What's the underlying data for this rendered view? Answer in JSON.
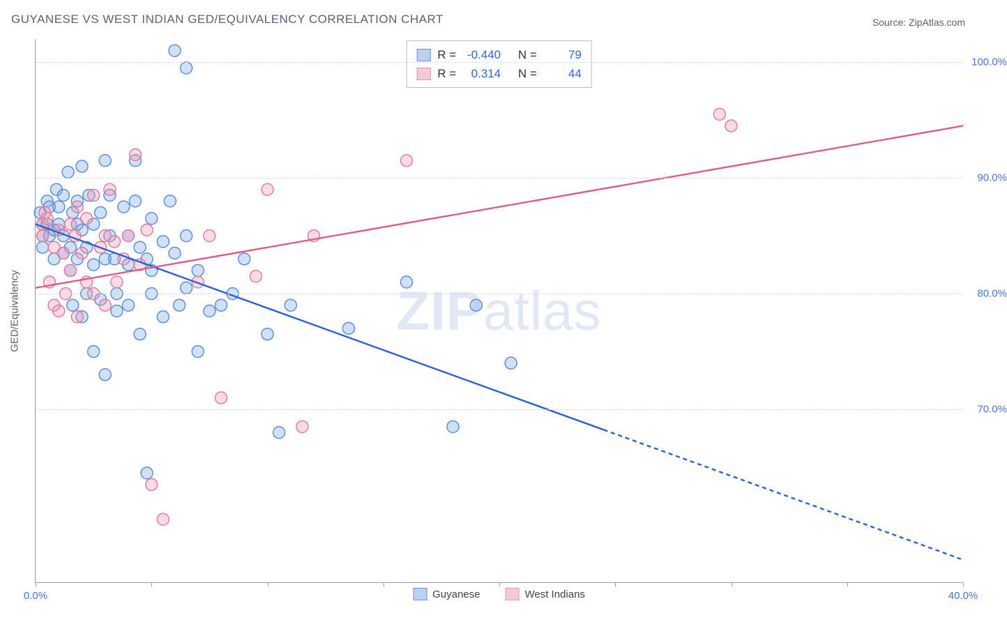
{
  "title": "GUYANESE VS WEST INDIAN GED/EQUIVALENCY CORRELATION CHART",
  "source": "Source: ZipAtlas.com",
  "watermark": {
    "zip": "ZIP",
    "atlas": "atlas"
  },
  "y_axis_label": "GED/Equivalency",
  "chart": {
    "type": "scatter-with-regression",
    "background_color": "#ffffff",
    "grid_color": "#d8d8d8",
    "axis_color": "#999999",
    "tick_label_color": "#4a74d6",
    "x": {
      "min": 0,
      "max": 40,
      "ticks": [
        0,
        5,
        10,
        15,
        20,
        25,
        30,
        35,
        40
      ],
      "labels": {
        "0": "0.0%",
        "40": "40.0%"
      }
    },
    "y": {
      "min": 55,
      "max": 102,
      "ticks": [
        70,
        80,
        90,
        100
      ],
      "labels": {
        "70": "70.0%",
        "80": "80.0%",
        "90": "90.0%",
        "100": "100.0%"
      }
    },
    "marker_radius": 8.5,
    "marker_stroke_width": 1.5,
    "line_width": 2.4,
    "series": [
      {
        "id": "guyanese",
        "label": "Guyanese",
        "fill": "rgba(120,165,230,0.35)",
        "stroke": "#5e8fd8",
        "line_color": "#2d5fd0",
        "swatch_fill": "#bcd1f1",
        "swatch_stroke": "#6b95da",
        "R": "-0.440",
        "N": "79",
        "regression": {
          "x1": 0,
          "y1": 86,
          "x2": 40,
          "y2": 57,
          "solid_until_x": 24.5,
          "dash": "6 5"
        },
        "points": [
          [
            0.2,
            87
          ],
          [
            0.3,
            86
          ],
          [
            0.3,
            85
          ],
          [
            0.3,
            84
          ],
          [
            0.5,
            88
          ],
          [
            0.5,
            86
          ],
          [
            0.6,
            85
          ],
          [
            0.6,
            87.5
          ],
          [
            0.8,
            83
          ],
          [
            0.8,
            85.5
          ],
          [
            0.9,
            89
          ],
          [
            1.0,
            87.5
          ],
          [
            1.0,
            86
          ],
          [
            1.2,
            88.5
          ],
          [
            1.2,
            85
          ],
          [
            1.2,
            83.5
          ],
          [
            1.4,
            90.5
          ],
          [
            1.5,
            82
          ],
          [
            1.5,
            84
          ],
          [
            1.6,
            87
          ],
          [
            1.6,
            79
          ],
          [
            1.8,
            88
          ],
          [
            1.8,
            86
          ],
          [
            1.8,
            83
          ],
          [
            2.0,
            91
          ],
          [
            2.0,
            85.5
          ],
          [
            2.0,
            78
          ],
          [
            2.2,
            84
          ],
          [
            2.2,
            80
          ],
          [
            2.3,
            88.5
          ],
          [
            2.5,
            82.5
          ],
          [
            2.5,
            86
          ],
          [
            2.5,
            75
          ],
          [
            2.8,
            87
          ],
          [
            2.8,
            79.5
          ],
          [
            3.0,
            83
          ],
          [
            3.0,
            91.5
          ],
          [
            3.0,
            73
          ],
          [
            3.2,
            88.5
          ],
          [
            3.2,
            85
          ],
          [
            3.4,
            83
          ],
          [
            3.5,
            80
          ],
          [
            3.5,
            78.5
          ],
          [
            3.8,
            87.5
          ],
          [
            4.0,
            85
          ],
          [
            4.0,
            82.5
          ],
          [
            4.0,
            79
          ],
          [
            4.3,
            91.5
          ],
          [
            4.3,
            88
          ],
          [
            4.5,
            84
          ],
          [
            4.5,
            76.5
          ],
          [
            4.8,
            83
          ],
          [
            5.0,
            86.5
          ],
          [
            5.0,
            82
          ],
          [
            5.0,
            80
          ],
          [
            5.5,
            84.5
          ],
          [
            5.5,
            78
          ],
          [
            5.8,
            88
          ],
          [
            6.0,
            101
          ],
          [
            6.0,
            83.5
          ],
          [
            6.2,
            79
          ],
          [
            6.5,
            85
          ],
          [
            6.5,
            80.5
          ],
          [
            6.5,
            99.5
          ],
          [
            7.0,
            82
          ],
          [
            7.0,
            75
          ],
          [
            7.5,
            78.5
          ],
          [
            8.0,
            79
          ],
          [
            8.5,
            80
          ],
          [
            9.0,
            83
          ],
          [
            10.0,
            76.5
          ],
          [
            10.5,
            68
          ],
          [
            11.0,
            79
          ],
          [
            13.5,
            77
          ],
          [
            16.0,
            81
          ],
          [
            18.0,
            68.5
          ],
          [
            19.0,
            79
          ],
          [
            20.5,
            74
          ],
          [
            4.8,
            64.5
          ]
        ]
      },
      {
        "id": "west_indians",
        "label": "West Indians",
        "fill": "rgba(240,150,175,0.35)",
        "stroke": "#e07da0",
        "line_color": "#df5b87",
        "swatch_fill": "#f6c9d7",
        "swatch_stroke": "#e593b0",
        "R": "0.314",
        "N": "44",
        "regression": {
          "x1": 0,
          "y1": 80.5,
          "x2": 40,
          "y2": 94.5,
          "solid_until_x": 40
        },
        "points": [
          [
            0.3,
            86
          ],
          [
            0.3,
            85
          ],
          [
            0.4,
            87
          ],
          [
            0.5,
            86.5
          ],
          [
            0.6,
            81
          ],
          [
            0.8,
            84
          ],
          [
            0.8,
            79
          ],
          [
            1.0,
            85.5
          ],
          [
            1.0,
            78.5
          ],
          [
            1.2,
            83.5
          ],
          [
            1.3,
            80
          ],
          [
            1.5,
            86
          ],
          [
            1.5,
            82
          ],
          [
            1.7,
            85
          ],
          [
            1.8,
            78
          ],
          [
            1.8,
            87.5
          ],
          [
            2.0,
            83.5
          ],
          [
            2.2,
            86.5
          ],
          [
            2.2,
            81
          ],
          [
            2.5,
            80
          ],
          [
            2.5,
            88.5
          ],
          [
            2.8,
            84
          ],
          [
            3.0,
            85
          ],
          [
            3.0,
            79
          ],
          [
            3.2,
            89
          ],
          [
            3.4,
            84.5
          ],
          [
            3.5,
            81
          ],
          [
            3.8,
            83
          ],
          [
            4.0,
            85
          ],
          [
            4.3,
            92
          ],
          [
            4.5,
            82.5
          ],
          [
            4.8,
            85.5
          ],
          [
            5.0,
            63.5
          ],
          [
            5.5,
            60.5
          ],
          [
            7.0,
            81
          ],
          [
            7.5,
            85
          ],
          [
            8.0,
            71
          ],
          [
            9.5,
            81.5
          ],
          [
            10.0,
            89
          ],
          [
            11.5,
            68.5
          ],
          [
            12.0,
            85
          ],
          [
            16.0,
            91.5
          ],
          [
            29.5,
            95.5
          ],
          [
            30.0,
            94.5
          ]
        ]
      }
    ]
  },
  "stats_labels": {
    "R": "R =",
    "N": "N ="
  }
}
